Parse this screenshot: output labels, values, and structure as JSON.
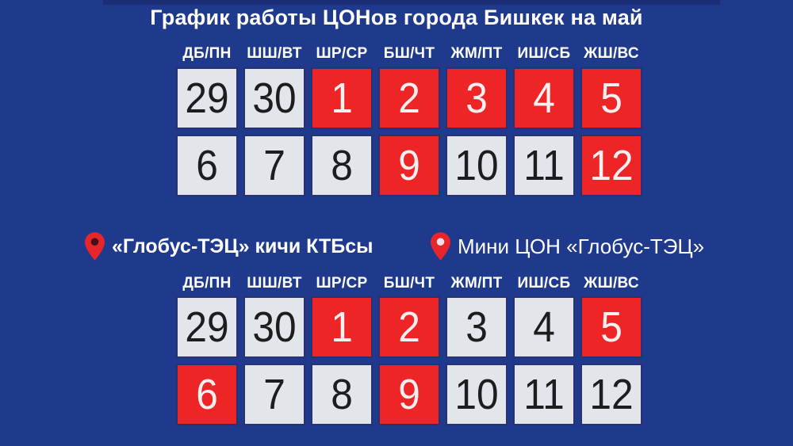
{
  "title": "График работы ЦОНов города Бишкек на май",
  "colors": {
    "background": "#1f3a8c",
    "top_strip": "#1b2d74",
    "day_off": "#ee2526",
    "work_day": "#e2e5e9",
    "grid_border": "#2a3170",
    "text_dark": "#1d1d1f",
    "text_light": "#ffffff",
    "num_on_red": "#f7eff0",
    "pin_red": "#e8252a"
  },
  "day_headers": [
    "ДБ/ПН",
    "ШШ/ВТ",
    "ШР/СР",
    "БШ/ЧТ",
    "ЖМ/ПТ",
    "ИШ/СБ",
    "ЖШ/ВС"
  ],
  "calendar_main": {
    "rows": [
      [
        {
          "day": "29",
          "type": "work"
        },
        {
          "day": "30",
          "type": "work"
        },
        {
          "day": "1",
          "type": "off"
        },
        {
          "day": "2",
          "type": "off"
        },
        {
          "day": "3",
          "type": "off"
        },
        {
          "day": "4",
          "type": "off"
        },
        {
          "day": "5",
          "type": "off"
        }
      ],
      [
        {
          "day": "6",
          "type": "work"
        },
        {
          "day": "7",
          "type": "work"
        },
        {
          "day": "8",
          "type": "work"
        },
        {
          "day": "9",
          "type": "off"
        },
        {
          "day": "10",
          "type": "work"
        },
        {
          "day": "11",
          "type": "work"
        },
        {
          "day": "12",
          "type": "off"
        }
      ]
    ]
  },
  "locations": [
    {
      "label": "«Глобус-ТЭЦ» кичи КТБсы",
      "pin_hole": "#43101c"
    },
    {
      "label": "Мини ЦОН «Глобус-ТЭЦ»",
      "pin_hole": "#f3e3e5"
    }
  ],
  "calendar_globus": {
    "rows": [
      [
        {
          "day": "29",
          "type": "work"
        },
        {
          "day": "30",
          "type": "work"
        },
        {
          "day": "1",
          "type": "off"
        },
        {
          "day": "2",
          "type": "off"
        },
        {
          "day": "3",
          "type": "work"
        },
        {
          "day": "4",
          "type": "work"
        },
        {
          "day": "5",
          "type": "off"
        }
      ],
      [
        {
          "day": "6",
          "type": "off"
        },
        {
          "day": "7",
          "type": "work"
        },
        {
          "day": "8",
          "type": "work"
        },
        {
          "day": "9",
          "type": "off"
        },
        {
          "day": "10",
          "type": "work"
        },
        {
          "day": "11",
          "type": "work"
        },
        {
          "day": "12",
          "type": "work"
        }
      ]
    ]
  }
}
